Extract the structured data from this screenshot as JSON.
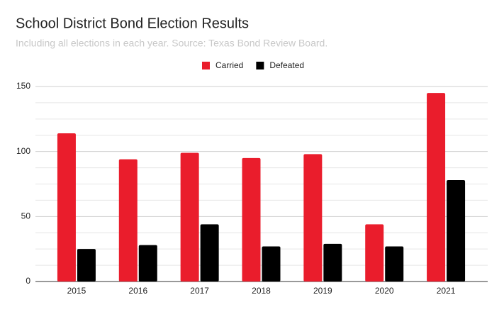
{
  "chart_data": {
    "type": "bar",
    "title": "School District Bond Election Results",
    "subtitle": "Including all elections in each year. Source: Texas Bond Review Board.",
    "categories": [
      "2015",
      "2016",
      "2017",
      "2018",
      "2019",
      "2020",
      "2021"
    ],
    "series": [
      {
        "name": "Carried",
        "color": "#ea1d2c",
        "values": [
          114,
          94,
          99,
          95,
          98,
          44,
          145
        ]
      },
      {
        "name": "Defeated",
        "color": "#000000",
        "values": [
          25,
          28,
          44,
          27,
          29,
          27,
          78
        ]
      }
    ],
    "ylim": [
      0,
      150
    ],
    "yticks": [
      0,
      50,
      100,
      150
    ],
    "minor_yticks": [
      12.5,
      25,
      37.5,
      62.5,
      75,
      87.5,
      112.5,
      125,
      137.5
    ],
    "grid": true,
    "legend": "top"
  }
}
